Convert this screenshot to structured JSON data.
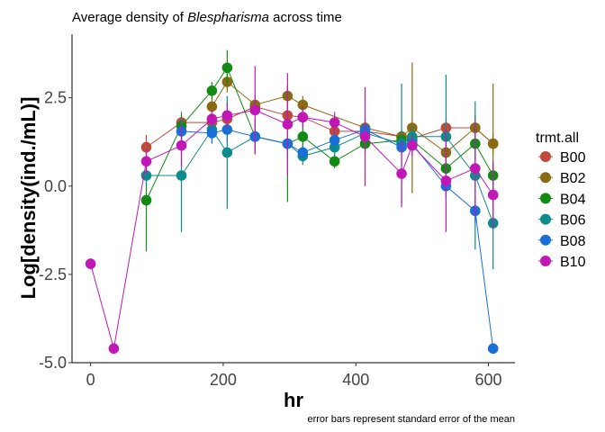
{
  "chart_data": {
    "type": "line",
    "title_prefix": "Average density of ",
    "title_italic": "Blespharisma",
    "title_suffix": " across time",
    "xlabel": "hr",
    "ylabel": "Log[density(ind./mL)]",
    "caption": "error bars represent standard error of the mean",
    "xlim": [
      -28,
      640
    ],
    "ylim": [
      -5.0,
      4.3
    ],
    "x_ticks": [
      0,
      200,
      400,
      600
    ],
    "x_tick_labels": [
      "0",
      "200",
      "400",
      "600"
    ],
    "y_ticks": [
      -5.0,
      -2.5,
      0.0,
      2.5
    ],
    "y_tick_labels": [
      "-5.0",
      "-2.5",
      "0.0",
      "2.5"
    ],
    "grid": false,
    "legend": {
      "title": "trmt.all",
      "position": "right"
    },
    "series": [
      {
        "name": "B00",
        "color": "#c0493c",
        "x": [
          84,
          137,
          183,
          206,
          248,
          297,
          320,
          368,
          414,
          469,
          485,
          536,
          580,
          607
        ],
        "y": [
          1.1,
          1.8,
          1.8,
          1.9,
          2.25,
          2.0,
          1.95,
          1.55,
          1.55,
          1.4,
          1.35,
          1.65,
          1.65,
          1.2
        ],
        "err": [
          0.35,
          0.2,
          0.2,
          0.25,
          0.2,
          0.25,
          0.25,
          0.2,
          0.25,
          0.15,
          0.2,
          0.25,
          0.35,
          0.3
        ]
      },
      {
        "name": "B02",
        "color": "#8a6a12",
        "x": [
          183,
          206,
          248,
          297,
          320,
          414,
          469,
          485,
          536,
          580,
          607
        ],
        "y": [
          2.25,
          2.95,
          2.3,
          2.55,
          2.3,
          1.65,
          1.4,
          1.65,
          0.95,
          1.65,
          1.2
        ],
        "err": [
          0.2,
          0.3,
          0.25,
          0.3,
          0.25,
          0.25,
          0.2,
          1.85,
          0.4,
          0.35,
          1.7
        ]
      },
      {
        "name": "B04",
        "color": "#138a13",
        "x": [
          84,
          137,
          183,
          206,
          248,
          297,
          320,
          368,
          414,
          469,
          485,
          536,
          580,
          607
        ],
        "y": [
          -0.4,
          1.7,
          2.7,
          3.35,
          1.4,
          1.2,
          1.4,
          0.7,
          1.2,
          1.3,
          1.3,
          0.5,
          1.2,
          0.3
        ],
        "err": [
          1.45,
          0.4,
          0.25,
          0.5,
          0.5,
          1.65,
          0.3,
          0.2,
          0.25,
          0.2,
          0.25,
          0.35,
          0.45,
          0.3
        ]
      },
      {
        "name": "B06",
        "color": "#0e8b8b",
        "x": [
          84,
          137,
          183,
          206,
          248,
          297,
          320,
          368,
          414,
          469,
          485,
          536,
          580,
          607
        ],
        "y": [
          0.3,
          0.3,
          1.6,
          0.95,
          1.4,
          1.2,
          0.85,
          1.1,
          1.5,
          1.2,
          1.4,
          1.4,
          0.3,
          -1.05
        ],
        "err": [
          0.3,
          1.6,
          0.35,
          1.6,
          0.25,
          0.2,
          0.25,
          0.3,
          0.3,
          1.7,
          0.3,
          1.75,
          2.1,
          1.3
        ]
      },
      {
        "name": "B08",
        "color": "#1a6fd6",
        "x": [
          137,
          183,
          206,
          248,
          297,
          320,
          368,
          414,
          469,
          485,
          536,
          580,
          607
        ],
        "y": [
          1.55,
          1.5,
          1.6,
          1.4,
          1.2,
          0.95,
          1.3,
          1.6,
          1.1,
          1.2,
          0.0,
          -0.7,
          -4.6
        ],
        "err": [
          0.25,
          0.3,
          0.35,
          0.2,
          0.2,
          0.2,
          0.25,
          0.25,
          0.2,
          0.25,
          0.3,
          0.35,
          0.15
        ]
      },
      {
        "name": "B10",
        "color": "#c017b5",
        "x": [
          0,
          35,
          84,
          137,
          183,
          206,
          248,
          297,
          320,
          368,
          414,
          469,
          485,
          536,
          580,
          607
        ],
        "y": [
          -2.2,
          -4.6,
          0.7,
          1.15,
          1.9,
          2.0,
          2.15,
          1.75,
          1.95,
          1.8,
          1.4,
          0.35,
          1.15,
          0.15,
          0.5,
          -0.25
        ],
        "err": [
          0.15,
          0.15,
          0.35,
          0.6,
          0.25,
          0.35,
          1.25,
          1.45,
          0.3,
          0.3,
          1.4,
          0.95,
          0.3,
          1.45,
          1.35,
          0.95
        ]
      }
    ]
  }
}
